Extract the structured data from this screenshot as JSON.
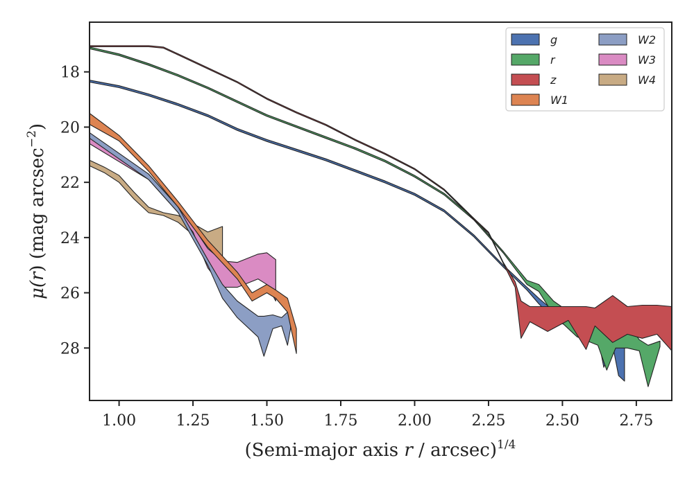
{
  "chart_data": {
    "type": "area",
    "xlabel": {
      "pre": "(Semi-major axis ",
      "var": "r",
      "post": " / arcsec)",
      "sup": "1/4"
    },
    "ylabel": {
      "pre": "μ(",
      "var": "r",
      "post": ") (mag arcsec",
      "sup": "−2",
      "end": ")"
    },
    "xlim": [
      0.9,
      2.87
    ],
    "ylim": [
      29.9,
      16.2
    ],
    "y_inverted": true,
    "xticks": [
      1.0,
      1.25,
      1.5,
      1.75,
      2.0,
      2.25,
      2.5,
      2.75
    ],
    "xtick_labels": [
      "1.00",
      "1.25",
      "1.50",
      "1.75",
      "2.00",
      "2.25",
      "2.50",
      "2.75"
    ],
    "yticks": [
      18,
      20,
      22,
      24,
      26,
      28
    ],
    "ytick_labels": [
      "18",
      "20",
      "22",
      "24",
      "26",
      "28"
    ],
    "grid": false,
    "legend": {
      "placement": "top-right",
      "columns": 2
    },
    "series": [
      {
        "name": "g",
        "color": "#4c72b0",
        "band": [
          [
            0.9,
            18.3,
            18.37
          ],
          [
            1.0,
            18.5,
            18.57
          ],
          [
            1.1,
            18.8,
            18.87
          ],
          [
            1.2,
            19.15,
            19.22
          ],
          [
            1.3,
            19.55,
            19.62
          ],
          [
            1.4,
            20.05,
            20.12
          ],
          [
            1.5,
            20.45,
            20.52
          ],
          [
            1.6,
            20.8,
            20.87
          ],
          [
            1.7,
            21.15,
            21.22
          ],
          [
            1.8,
            21.55,
            21.62
          ],
          [
            1.9,
            21.95,
            22.02
          ],
          [
            2.0,
            22.4,
            22.47
          ],
          [
            2.1,
            23.0,
            23.07
          ],
          [
            2.2,
            23.9,
            23.97
          ],
          [
            2.3,
            25.0,
            25.07
          ],
          [
            2.38,
            25.8,
            25.9
          ],
          [
            2.42,
            26.2,
            26.4
          ],
          [
            2.47,
            26.65,
            26.95
          ],
          [
            2.55,
            27.0,
            27.4
          ],
          [
            2.62,
            26.9,
            27.6
          ],
          [
            2.64,
            27.0,
            28.7
          ],
          [
            2.67,
            27.9,
            27.9
          ],
          [
            2.69,
            27.85,
            29.0
          ],
          [
            2.71,
            27.85,
            29.2
          ]
        ]
      },
      {
        "name": "r",
        "color": "#55a868",
        "band": [
          [
            0.9,
            17.1,
            17.16
          ],
          [
            1.0,
            17.35,
            17.41
          ],
          [
            1.1,
            17.7,
            17.76
          ],
          [
            1.2,
            18.1,
            18.16
          ],
          [
            1.3,
            18.55,
            18.61
          ],
          [
            1.4,
            19.05,
            19.11
          ],
          [
            1.5,
            19.55,
            19.61
          ],
          [
            1.6,
            19.95,
            20.01
          ],
          [
            1.7,
            20.35,
            20.41
          ],
          [
            1.8,
            20.75,
            20.81
          ],
          [
            1.9,
            21.2,
            21.26
          ],
          [
            2.0,
            21.75,
            21.81
          ],
          [
            2.1,
            22.4,
            22.46
          ],
          [
            2.2,
            23.3,
            23.36
          ],
          [
            2.3,
            24.5,
            24.56
          ],
          [
            2.38,
            25.55,
            25.7
          ],
          [
            2.42,
            25.7,
            25.95
          ],
          [
            2.47,
            26.3,
            26.8
          ],
          [
            2.55,
            26.9,
            27.6
          ],
          [
            2.62,
            26.9,
            27.9
          ],
          [
            2.65,
            27.0,
            28.8
          ],
          [
            2.68,
            26.9,
            28.0
          ],
          [
            2.72,
            27.1,
            28.0
          ],
          [
            2.76,
            27.7,
            28.1
          ],
          [
            2.79,
            27.9,
            29.4
          ],
          [
            2.83,
            27.75,
            27.95
          ]
        ]
      },
      {
        "name": "z",
        "color": "#c44e52",
        "band": [
          [
            0.9,
            17.05,
            17.09
          ],
          [
            1.0,
            17.05,
            17.09
          ],
          [
            1.1,
            17.05,
            17.09
          ],
          [
            1.15,
            17.1,
            17.14
          ],
          [
            1.2,
            17.35,
            17.39
          ],
          [
            1.3,
            17.85,
            17.89
          ],
          [
            1.4,
            18.35,
            18.39
          ],
          [
            1.5,
            18.95,
            18.99
          ],
          [
            1.6,
            19.45,
            19.49
          ],
          [
            1.7,
            19.9,
            19.94
          ],
          [
            1.8,
            20.45,
            20.49
          ],
          [
            1.9,
            20.95,
            20.99
          ],
          [
            2.0,
            21.5,
            21.54
          ],
          [
            2.1,
            22.25,
            22.29
          ],
          [
            2.2,
            23.3,
            23.34
          ],
          [
            2.25,
            23.8,
            23.84
          ],
          [
            2.3,
            24.9,
            24.94
          ],
          [
            2.34,
            25.6,
            25.8
          ],
          [
            2.36,
            26.3,
            27.65
          ],
          [
            2.39,
            26.5,
            27.05
          ],
          [
            2.45,
            26.5,
            27.4
          ],
          [
            2.52,
            26.5,
            27.0
          ],
          [
            2.58,
            26.5,
            28.05
          ],
          [
            2.61,
            26.55,
            27.2
          ],
          [
            2.67,
            26.1,
            27.8
          ],
          [
            2.72,
            26.5,
            27.5
          ],
          [
            2.77,
            26.45,
            27.65
          ],
          [
            2.82,
            26.45,
            27.5
          ],
          [
            2.87,
            26.5,
            28.1
          ]
        ]
      },
      {
        "name": "W1",
        "color": "#dd8452",
        "band": [
          [
            0.9,
            19.5,
            19.9
          ],
          [
            1.0,
            20.3,
            20.5
          ],
          [
            1.1,
            21.4,
            21.6
          ],
          [
            1.2,
            22.7,
            22.9
          ],
          [
            1.3,
            24.1,
            24.35
          ],
          [
            1.4,
            25.25,
            25.5
          ],
          [
            1.45,
            26.0,
            26.3
          ],
          [
            1.5,
            25.7,
            26.0
          ],
          [
            1.53,
            25.9,
            26.2
          ],
          [
            1.57,
            26.2,
            26.7
          ],
          [
            1.6,
            27.3,
            28.2
          ]
        ]
      },
      {
        "name": "W2",
        "color": "#8c9ec4",
        "band": [
          [
            0.9,
            20.2,
            20.4
          ],
          [
            1.0,
            20.95,
            21.15
          ],
          [
            1.1,
            21.7,
            21.9
          ],
          [
            1.2,
            22.9,
            23.1
          ],
          [
            1.3,
            24.8,
            25.0
          ],
          [
            1.35,
            25.7,
            26.2
          ],
          [
            1.4,
            26.3,
            26.9
          ],
          [
            1.47,
            26.85,
            27.6
          ],
          [
            1.49,
            26.85,
            28.3
          ],
          [
            1.52,
            26.8,
            27.3
          ],
          [
            1.55,
            26.9,
            27.2
          ],
          [
            1.57,
            26.7,
            27.9
          ],
          [
            1.58,
            26.7,
            27.3
          ]
        ]
      },
      {
        "name": "W3",
        "color": "#da8bc3",
        "band": [
          [
            0.9,
            20.4,
            20.6
          ],
          [
            1.0,
            21.05,
            21.25
          ],
          [
            1.1,
            21.7,
            21.9
          ],
          [
            1.2,
            22.9,
            23.1
          ],
          [
            1.25,
            23.6,
            23.8
          ],
          [
            1.3,
            24.4,
            25.1
          ],
          [
            1.35,
            24.85,
            25.8
          ],
          [
            1.4,
            24.9,
            25.8
          ],
          [
            1.47,
            24.6,
            25.5
          ],
          [
            1.5,
            24.55,
            25.7
          ],
          [
            1.53,
            24.8,
            26.3
          ]
        ]
      },
      {
        "name": "W4",
        "color": "#c8ab84",
        "band": [
          [
            0.9,
            21.2,
            21.4
          ],
          [
            0.95,
            21.45,
            21.65
          ],
          [
            1.0,
            21.75,
            22.0
          ],
          [
            1.05,
            22.35,
            22.6
          ],
          [
            1.1,
            22.9,
            23.1
          ],
          [
            1.15,
            23.1,
            23.2
          ],
          [
            1.2,
            23.2,
            23.45
          ],
          [
            1.25,
            23.5,
            23.9
          ],
          [
            1.3,
            23.8,
            24.3
          ],
          [
            1.35,
            23.6,
            24.9
          ]
        ]
      }
    ]
  }
}
